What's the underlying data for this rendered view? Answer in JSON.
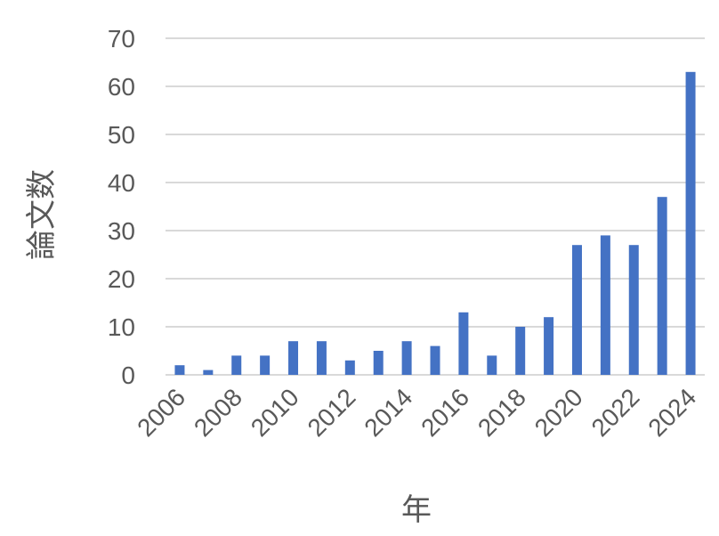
{
  "chart_data": {
    "type": "bar",
    "categories": [
      "2006",
      "2007",
      "2008",
      "2009",
      "2010",
      "2011",
      "2012",
      "2013",
      "2014",
      "2015",
      "2016",
      "2017",
      "2018",
      "2019",
      "2020",
      "2021",
      "2022",
      "2023",
      "2024"
    ],
    "x_tick_labels": [
      "2006",
      "2008",
      "2010",
      "2012",
      "2014",
      "2016",
      "2018",
      "2020",
      "2022",
      "2024"
    ],
    "values": [
      2,
      1,
      4,
      4,
      7,
      7,
      3,
      5,
      7,
      6,
      13,
      4,
      10,
      12,
      27,
      29,
      27,
      37,
      63
    ],
    "y_ticks": [
      0,
      10,
      20,
      30,
      40,
      50,
      60,
      70
    ],
    "ylim": [
      0,
      70
    ],
    "xlabel": "年",
    "ylabel": "論文数",
    "grid": true,
    "legend": "none",
    "colors": {
      "bar": "#4472c4",
      "grid": "#d9d9d9",
      "text": "#595959"
    }
  }
}
